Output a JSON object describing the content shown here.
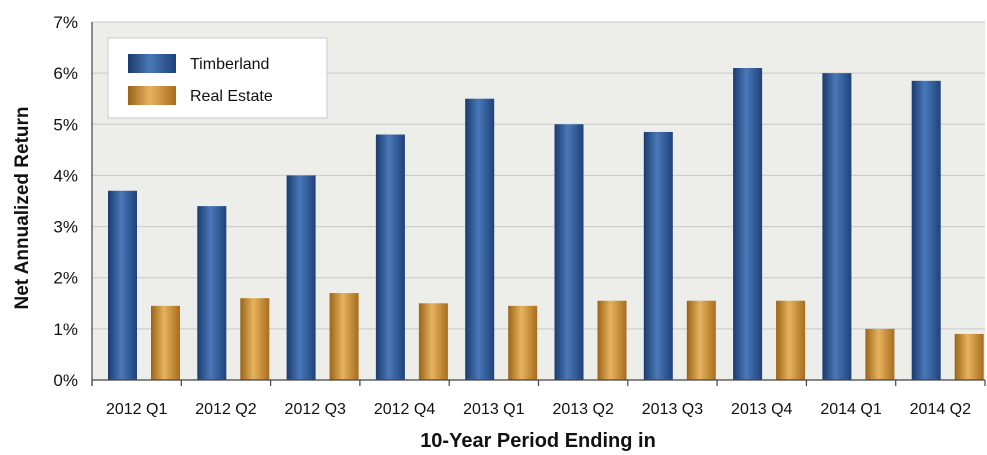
{
  "chart_data": {
    "type": "bar",
    "title": "",
    "xlabel": "10-Year Period Ending in",
    "ylabel": "Net Annualized Return",
    "categories": [
      "2012 Q1",
      "2012 Q2",
      "2012 Q3",
      "2012 Q4",
      "2013 Q1",
      "2013 Q2",
      "2013 Q3",
      "2013 Q4",
      "2014 Q1",
      "2014 Q2"
    ],
    "series": [
      {
        "name": "Timberland",
        "values": [
          3.7,
          3.4,
          4.0,
          4.8,
          5.5,
          5.0,
          4.85,
          6.1,
          6.0,
          5.85
        ]
      },
      {
        "name": "Real Estate",
        "values": [
          1.45,
          1.6,
          1.7,
          1.5,
          1.45,
          1.55,
          1.55,
          1.55,
          1.0,
          0.9
        ]
      }
    ],
    "ylim": [
      0,
      7
    ],
    "yticks": [
      "0%",
      "1%",
      "2%",
      "3%",
      "4%",
      "5%",
      "6%",
      "7%"
    ],
    "grid": true,
    "legend_position": "top-left",
    "colors": {
      "Timberland": "#2a5593",
      "Real Estate": "#c98a2e",
      "plot_background": "#ededea",
      "gridline": "#c8c8c4"
    }
  }
}
